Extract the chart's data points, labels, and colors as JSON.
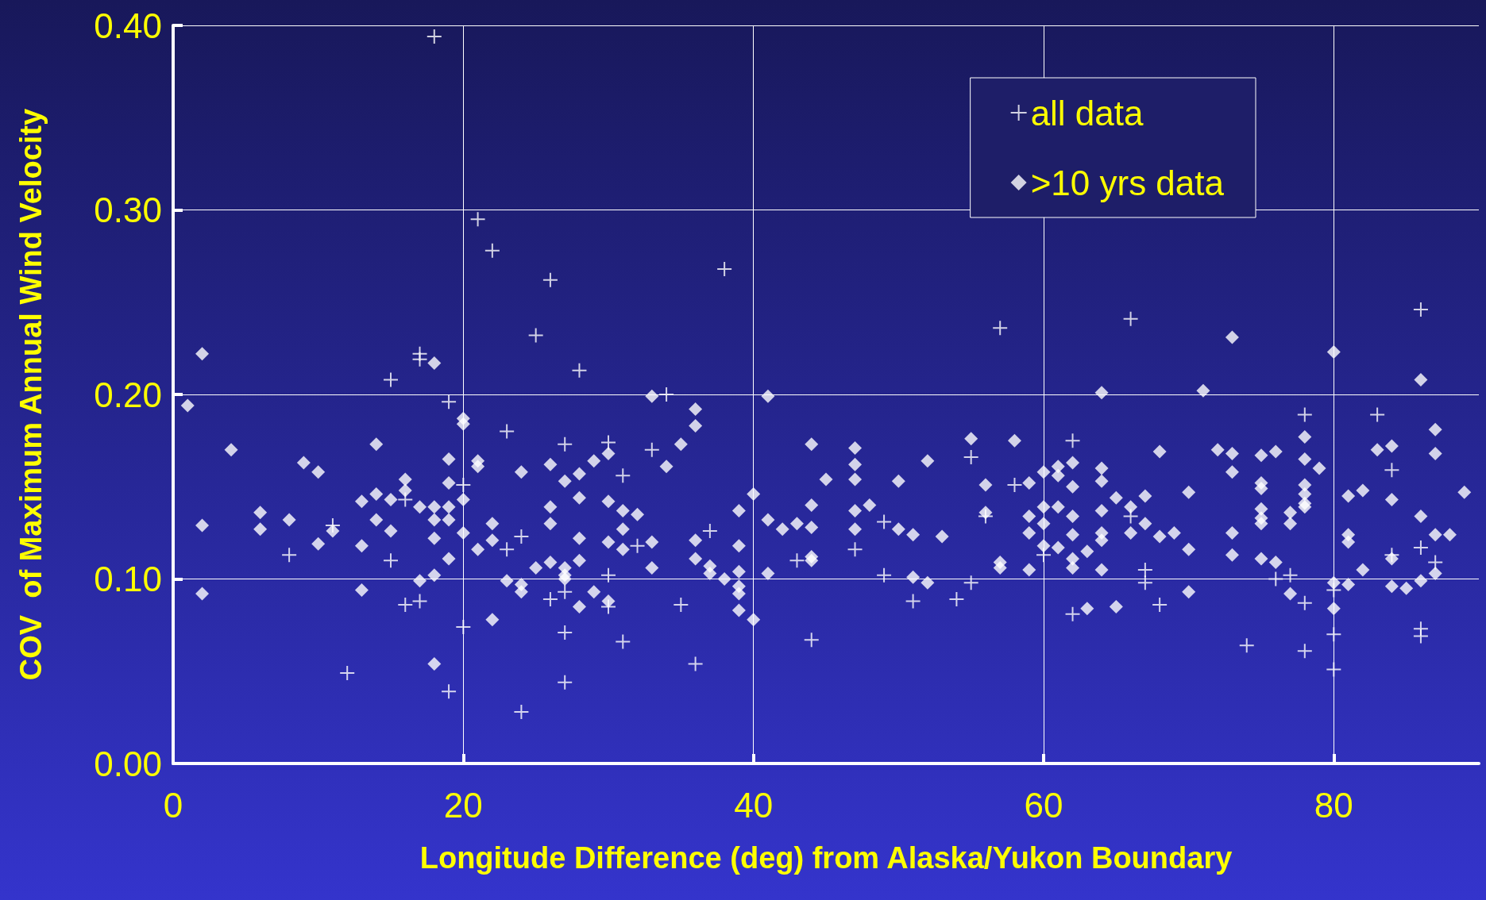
{
  "chart_data": {
    "type": "scatter",
    "xlabel": "Longitude Difference (deg) from Alaska/Yukon Boundary",
    "ylabel": "COV  of Maximum Annual Wind Velocity",
    "xlim": [
      0,
      90
    ],
    "xticks": [
      0,
      20,
      40,
      60,
      80
    ],
    "ylim": [
      0,
      0.4
    ],
    "yticks": [
      {
        "value": 0,
        "label": "0.00"
      },
      {
        "value": 0.1,
        "label": "0.10"
      },
      {
        "value": 0.2,
        "label": "0.20"
      },
      {
        "value": 0.3,
        "label": "0.30"
      },
      {
        "value": 0.4,
        "label": "0.40"
      }
    ],
    "grid": true,
    "legend": "top right",
    "series": [
      {
        "name": "all data",
        "color": "#ffffff",
        "marker": "cross",
        "x": [
          12,
          8,
          11,
          15,
          15,
          16,
          16,
          17,
          17,
          17,
          18,
          19,
          19,
          20,
          20,
          21,
          22,
          23,
          23,
          24,
          24,
          25,
          26,
          26,
          27,
          27,
          27,
          27,
          28,
          30,
          30,
          30,
          31,
          31,
          32,
          33,
          34,
          35,
          36,
          37,
          38,
          43,
          44,
          47,
          49,
          49,
          51,
          54,
          55,
          55,
          56,
          57,
          58,
          60,
          62,
          62,
          66,
          66,
          67,
          67,
          68,
          74,
          76,
          77,
          78,
          78,
          78,
          80,
          80,
          80,
          83,
          84,
          84,
          86,
          86,
          86,
          86,
          87
        ],
        "values": [
          0.049,
          0.113,
          0.129,
          0.208,
          0.11,
          0.143,
          0.086,
          0.088,
          0.222,
          0.219,
          0.394,
          0.196,
          0.039,
          0.151,
          0.074,
          0.295,
          0.278,
          0.18,
          0.116,
          0.028,
          0.123,
          0.232,
          0.262,
          0.089,
          0.173,
          0.093,
          0.071,
          0.044,
          0.213,
          0.174,
          0.102,
          0.085,
          0.156,
          0.066,
          0.118,
          0.17,
          0.2,
          0.086,
          0.054,
          0.126,
          0.268,
          0.11,
          0.067,
          0.116,
          0.131,
          0.102,
          0.088,
          0.089,
          0.166,
          0.098,
          0.134,
          0.236,
          0.151,
          0.113,
          0.175,
          0.081,
          0.241,
          0.134,
          0.105,
          0.098,
          0.086,
          0.064,
          0.1,
          0.102,
          0.189,
          0.087,
          0.061,
          0.07,
          0.051,
          0.094,
          0.189,
          0.159,
          0.113,
          0.246,
          0.117,
          0.073,
          0.069,
          0.109
        ]
      },
      {
        "name": ">10 yrs data",
        "color": "#ffffff",
        "marker": "diamond",
        "x": [
          1,
          2,
          2,
          2,
          4,
          6,
          6,
          8,
          9,
          10,
          10,
          11,
          13,
          13,
          13,
          14,
          14,
          14,
          15,
          15,
          16,
          16,
          17,
          17,
          18,
          18,
          18,
          18,
          18,
          18,
          19,
          19,
          19,
          19,
          19,
          20,
          20,
          20,
          20,
          21,
          21,
          21,
          22,
          22,
          22,
          23,
          24,
          24,
          24,
          25,
          26,
          26,
          26,
          26,
          27,
          27,
          27,
          27,
          28,
          28,
          28,
          28,
          28,
          29,
          29,
          30,
          30,
          30,
          30,
          31,
          31,
          31,
          32,
          33,
          33,
          33,
          34,
          35,
          36,
          36,
          36,
          36,
          37,
          37,
          38,
          39,
          39,
          39,
          39,
          39,
          39,
          40,
          40,
          41,
          41,
          41,
          42,
          43,
          44,
          44,
          44,
          44,
          44,
          45,
          47,
          47,
          47,
          47,
          47,
          48,
          50,
          50,
          51,
          51,
          52,
          52,
          53,
          55,
          56,
          56,
          57,
          57,
          58,
          59,
          59,
          59,
          59,
          60,
          60,
          60,
          60,
          61,
          61,
          61,
          61,
          62,
          62,
          62,
          62,
          62,
          62,
          63,
          63,
          64,
          64,
          64,
          64,
          64,
          64,
          64,
          65,
          65,
          66,
          66,
          67,
          67,
          68,
          68,
          69,
          70,
          70,
          70,
          71,
          72,
          73,
          73,
          73,
          73,
          73,
          75,
          75,
          75,
          75,
          75,
          75,
          75,
          76,
          76,
          77,
          77,
          77,
          78,
          78,
          78,
          78,
          78,
          78,
          79,
          80,
          80,
          80,
          81,
          81,
          81,
          81,
          82,
          82,
          83,
          84,
          84,
          84,
          84,
          85,
          86,
          86,
          86,
          87,
          87,
          87,
          87,
          88,
          89
        ],
        "values": [
          0.194,
          0.222,
          0.129,
          0.092,
          0.17,
          0.136,
          0.127,
          0.132,
          0.163,
          0.158,
          0.119,
          0.126,
          0.142,
          0.118,
          0.094,
          0.173,
          0.146,
          0.132,
          0.143,
          0.126,
          0.154,
          0.148,
          0.139,
          0.099,
          0.217,
          0.139,
          0.132,
          0.122,
          0.102,
          0.054,
          0.165,
          0.152,
          0.139,
          0.132,
          0.111,
          0.187,
          0.184,
          0.143,
          0.125,
          0.164,
          0.161,
          0.116,
          0.13,
          0.121,
          0.078,
          0.099,
          0.158,
          0.097,
          0.093,
          0.106,
          0.162,
          0.139,
          0.13,
          0.109,
          0.153,
          0.106,
          0.102,
          0.1,
          0.157,
          0.144,
          0.122,
          0.11,
          0.085,
          0.164,
          0.093,
          0.168,
          0.142,
          0.12,
          0.088,
          0.137,
          0.127,
          0.116,
          0.135,
          0.199,
          0.12,
          0.106,
          0.161,
          0.173,
          0.192,
          0.183,
          0.121,
          0.111,
          0.107,
          0.103,
          0.1,
          0.137,
          0.118,
          0.104,
          0.096,
          0.092,
          0.083,
          0.146,
          0.078,
          0.199,
          0.132,
          0.103,
          0.127,
          0.13,
          0.173,
          0.14,
          0.128,
          0.112,
          0.11,
          0.154,
          0.171,
          0.162,
          0.154,
          0.137,
          0.127,
          0.14,
          0.153,
          0.127,
          0.124,
          0.101,
          0.098,
          0.164,
          0.123,
          0.176,
          0.136,
          0.151,
          0.109,
          0.106,
          0.175,
          0.152,
          0.134,
          0.125,
          0.105,
          0.158,
          0.139,
          0.13,
          0.118,
          0.161,
          0.156,
          0.139,
          0.117,
          0.163,
          0.15,
          0.134,
          0.124,
          0.111,
          0.106,
          0.115,
          0.084,
          0.201,
          0.16,
          0.153,
          0.137,
          0.125,
          0.121,
          0.105,
          0.144,
          0.085,
          0.139,
          0.125,
          0.145,
          0.13,
          0.169,
          0.123,
          0.125,
          0.147,
          0.116,
          0.093,
          0.202,
          0.17,
          0.231,
          0.168,
          0.158,
          0.125,
          0.113,
          0.167,
          0.152,
          0.149,
          0.138,
          0.133,
          0.13,
          0.111,
          0.169,
          0.109,
          0.136,
          0.13,
          0.092,
          0.177,
          0.165,
          0.151,
          0.146,
          0.141,
          0.139,
          0.16,
          0.223,
          0.098,
          0.084,
          0.145,
          0.124,
          0.12,
          0.097,
          0.148,
          0.105,
          0.17,
          0.172,
          0.143,
          0.111,
          0.096,
          0.095,
          0.208,
          0.134,
          0.099,
          0.181,
          0.168,
          0.124,
          0.103,
          0.124,
          0.147
        ]
      }
    ]
  }
}
